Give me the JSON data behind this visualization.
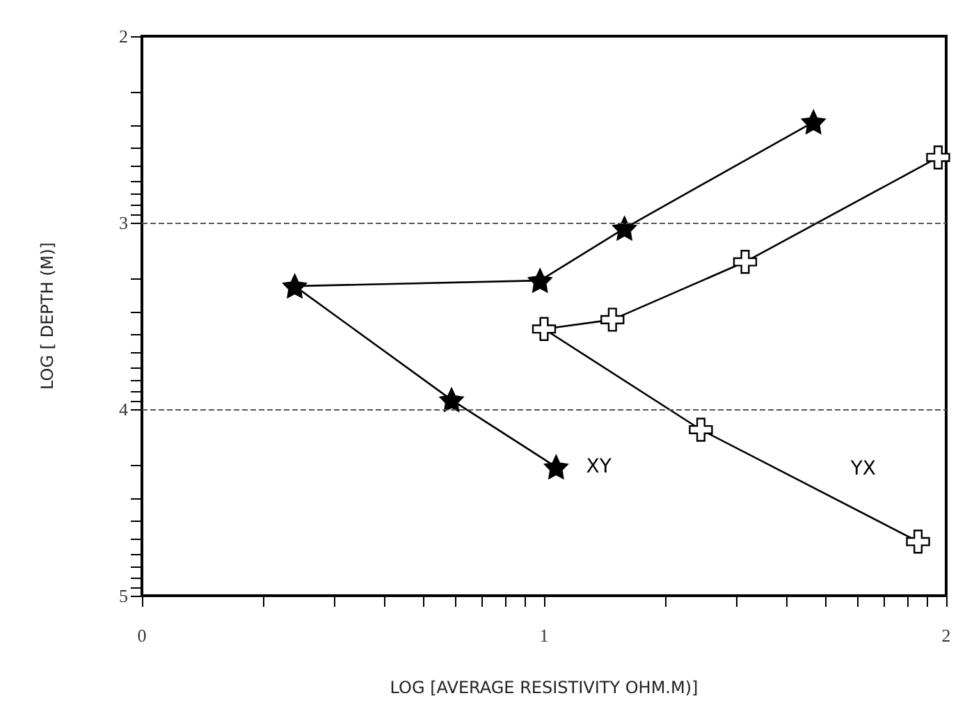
{
  "chart_data": {
    "type": "line",
    "xlabel": "LOG [AVERAGE RESISTIVITY OHM.M)]",
    "ylabel": "LOG [ DEPTH (M)]",
    "xlim": [
      0,
      2
    ],
    "ylim": [
      5,
      2
    ],
    "xticks": [
      0,
      {
        "value": 0.301,
        "label": null
      },
      {
        "value": 0.477,
        "label": null
      },
      {
        "value": 0.602,
        "label": null
      },
      {
        "value": 0.699,
        "label": null
      },
      {
        "value": 0.778,
        "label": null
      },
      {
        "value": 0.845,
        "label": null
      },
      {
        "value": 0.903,
        "label": null
      },
      {
        "value": 0.954,
        "label": null
      },
      1,
      {
        "value": 1.301,
        "label": null
      },
      {
        "value": 1.477,
        "label": null
      },
      {
        "value": 1.602,
        "label": null
      },
      {
        "value": 1.699,
        "label": null
      },
      {
        "value": 1.778,
        "label": null
      },
      {
        "value": 1.845,
        "label": null
      },
      {
        "value": 1.903,
        "label": null
      },
      {
        "value": 1.954,
        "label": null
      },
      2
    ],
    "yticks": [
      2,
      {
        "value": 2.301,
        "label": null
      },
      {
        "value": 2.477,
        "label": null
      },
      {
        "value": 2.602,
        "label": null
      },
      {
        "value": 2.699,
        "label": null
      },
      {
        "value": 2.778,
        "label": null
      },
      {
        "value": 2.845,
        "label": null
      },
      {
        "value": 2.903,
        "label": null
      },
      {
        "value": 2.954,
        "label": null
      },
      3,
      {
        "value": 3.301,
        "label": null
      },
      {
        "value": 3.477,
        "label": null
      },
      {
        "value": 3.602,
        "label": null
      },
      {
        "value": 3.699,
        "label": null
      },
      {
        "value": 3.778,
        "label": null
      },
      {
        "value": 3.845,
        "label": null
      },
      {
        "value": 3.903,
        "label": null
      },
      {
        "value": 3.954,
        "label": null
      },
      4,
      {
        "value": 4.301,
        "label": null
      },
      {
        "value": 4.477,
        "label": null
      },
      {
        "value": 4.602,
        "label": null
      },
      {
        "value": 4.699,
        "label": null
      },
      {
        "value": 4.778,
        "label": null
      },
      {
        "value": 4.845,
        "label": null
      },
      {
        "value": 4.903,
        "label": null
      },
      {
        "value": 4.954,
        "label": null
      },
      5
    ],
    "grid": false,
    "legend": false,
    "line_style": "solid",
    "ref_lines": [
      {
        "axis": "y",
        "value": 3,
        "line_style": "dashed",
        "color": "#555555"
      },
      {
        "axis": "y",
        "value": 4,
        "line_style": "dashed",
        "color": "#555555"
      }
    ],
    "series": [
      {
        "name": "XY",
        "color": "#000000",
        "marker": "star",
        "x": [
          1.67,
          1.2,
          0.99,
          0.38,
          0.77,
          1.03
        ],
        "values": [
          2.46,
          3.03,
          3.31,
          3.34,
          3.95,
          4.31
        ]
      },
      {
        "name": "YX",
        "color": "#000000",
        "marker": "cross",
        "x": [
          1.98,
          1.5,
          1.17,
          1.0,
          1.39,
          1.93
        ],
        "values": [
          2.65,
          3.21,
          3.52,
          3.57,
          4.11,
          4.71
        ]
      }
    ]
  }
}
